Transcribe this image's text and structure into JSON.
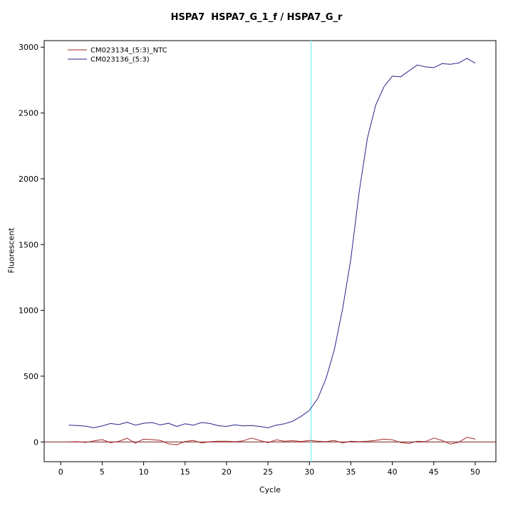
{
  "chart_data": {
    "type": "line",
    "title": "HSPA7  HSPA7_G_1_f / HSPA7_G_r",
    "xlabel": "Cycle",
    "ylabel": "Fluorescent",
    "grid": false,
    "legend_position": "top-left",
    "xlim": [
      -2,
      52.5
    ],
    "ylim": [
      -150,
      3050
    ],
    "xticks": [
      0,
      5,
      10,
      15,
      20,
      25,
      30,
      35,
      40,
      45,
      50
    ],
    "yticks": [
      0,
      500,
      1000,
      1500,
      2000,
      2500,
      3000
    ],
    "x": [
      1,
      2,
      3,
      4,
      5,
      6,
      7,
      8,
      9,
      10,
      11,
      12,
      13,
      14,
      15,
      16,
      17,
      18,
      19,
      20,
      21,
      22,
      23,
      24,
      25,
      26,
      27,
      28,
      29,
      30,
      31,
      32,
      33,
      34,
      35,
      36,
      37,
      38,
      39,
      40,
      41,
      42,
      43,
      44,
      45,
      46,
      47,
      48,
      49,
      50
    ],
    "series": [
      {
        "name": "CM023134_(5:3)_NTC",
        "color": "#A52A2A",
        "values": [
          0,
          3,
          -4,
          8,
          18,
          -6,
          5,
          28,
          -10,
          22,
          18,
          12,
          -14,
          -22,
          4,
          12,
          -8,
          2,
          6,
          6,
          2,
          8,
          30,
          12,
          -6,
          16,
          6,
          10,
          4,
          12,
          6,
          2,
          12,
          -8,
          6,
          2,
          6,
          12,
          22,
          16,
          -4,
          -12,
          6,
          2,
          30,
          12,
          -16,
          -2,
          35,
          22
        ]
      },
      {
        "name": "CM023136_(5:3)",
        "color": "#26268C",
        "values": [
          128,
          125,
          120,
          108,
          122,
          140,
          132,
          150,
          128,
          142,
          148,
          130,
          142,
          118,
          138,
          128,
          148,
          140,
          124,
          118,
          130,
          122,
          125,
          118,
          108,
          128,
          138,
          158,
          195,
          240,
          330,
          480,
          700,
          1010,
          1390,
          1900,
          2310,
          2560,
          2700,
          2780,
          2775,
          2820,
          2865,
          2850,
          2845,
          2875,
          2870,
          2880,
          2915,
          2880
        ]
      }
    ],
    "baseline": {
      "y": 0,
      "color": "#7A1F1F"
    },
    "ct_line": {
      "x": 30.2,
      "color": "#7FF0F0"
    },
    "axis_color": "#000000",
    "background_color": "#FFFFFF"
  }
}
